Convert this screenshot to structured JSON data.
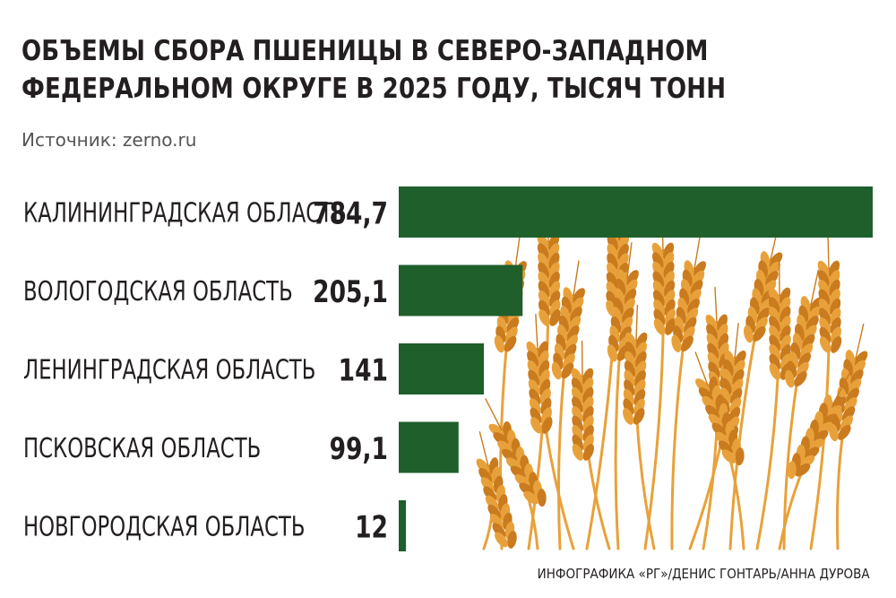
{
  "title_line1": "ОБЪЕМЫ СБОРА ПШЕНИЦЫ В СЕВЕРО-ЗАПАДНОМ",
  "title_line2": "ФЕДЕРАЛЬНОМ ОКРУГЕ В 2025 ГОДУ, ТЫСЯЧ ТОНН",
  "source": "Источник: zerno.ru",
  "credit": "ИНФОГРАФИКА «РГ»/ДЕНИС ГОНТАРЬ/АННА ДУРОВА",
  "colors": {
    "bar": "#1f5f2c",
    "wheat": "#e8a13a",
    "wheat_dark": "#c97b1e",
    "text": "#231f20"
  },
  "illustration": "wheat-ears-icon",
  "chart_data": {
    "type": "bar",
    "orientation": "horizontal",
    "title": "ОБЪЕМЫ СБОРА ПШЕНИЦЫ В СЕВЕРО-ЗАПАДНОМ ФЕДЕРАЛЬНОМ ОКРУГЕ В 2025 ГОДУ, ТЫСЯЧ ТОНН",
    "categories": [
      "КАЛИНИНГРАДСКАЯ ОБЛАСТЬ",
      "ВОЛОГОДСКАЯ ОБЛАСТЬ",
      "ЛЕНИНГРАДСКАЯ ОБЛАСТЬ",
      "ПСКОВСКАЯ ОБЛАСТЬ",
      "НОВГОРОДСКАЯ ОБЛАСТЬ"
    ],
    "values": [
      784.7,
      205.1,
      141,
      99.1,
      12
    ],
    "value_labels": [
      "784,7",
      "205,1",
      "141",
      "99,1",
      "12"
    ],
    "xlim": [
      0,
      784.7
    ],
    "grid": false,
    "legend": "none"
  }
}
